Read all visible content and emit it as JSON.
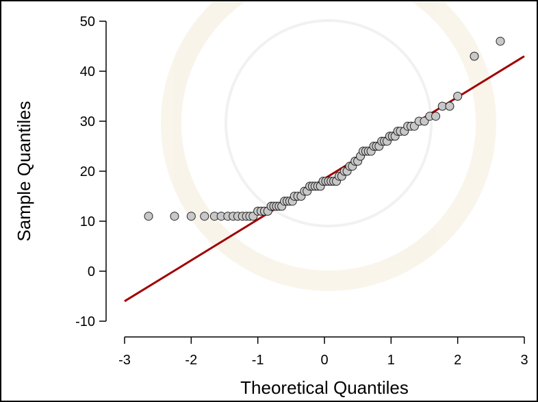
{
  "chart_data": {
    "type": "scatter",
    "xlabel": "Theoretical Quantiles",
    "ylabel": "Sample Quantiles",
    "xlim": [
      -3,
      3
    ],
    "ylim": [
      -10,
      50
    ],
    "xticks": [
      -3,
      -2,
      -1,
      0,
      1,
      2,
      3
    ],
    "yticks": [
      -10,
      0,
      10,
      20,
      30,
      40,
      50
    ],
    "series": [
      {
        "color": "#c8c8c8",
        "x": [
          -2.64,
          -2.25,
          -2.0,
          -1.8,
          -1.65,
          -1.55,
          -1.45,
          -1.37,
          -1.3,
          -1.23,
          -1.17,
          -1.12,
          -1.07,
          -1.0,
          -0.95,
          -0.9,
          -0.85,
          -0.8,
          -0.76,
          -0.72,
          -0.68,
          -0.64,
          -0.6,
          -0.56,
          -0.52,
          -0.48,
          -0.45,
          -0.4,
          -0.35,
          -0.3,
          -0.26,
          -0.22,
          -0.18,
          -0.14,
          -0.1,
          -0.06,
          -0.02,
          0.02,
          0.06,
          0.1,
          0.14,
          0.18,
          0.22,
          0.26,
          0.3,
          0.34,
          0.38,
          0.42,
          0.46,
          0.5,
          0.54,
          0.58,
          0.62,
          0.66,
          0.7,
          0.74,
          0.78,
          0.82,
          0.86,
          0.9,
          0.94,
          0.98,
          1.02,
          1.06,
          1.1,
          1.14,
          1.2,
          1.25,
          1.3,
          1.35,
          1.42,
          1.5,
          1.58,
          1.67,
          1.77,
          1.88,
          2.0,
          2.25,
          2.64
        ],
        "values": [
          11,
          11,
          11,
          11,
          11,
          11,
          11,
          11,
          11,
          11,
          11,
          11,
          11,
          12,
          12,
          12,
          12,
          13,
          13,
          13,
          13,
          13,
          14,
          14,
          14,
          14,
          15,
          15,
          15,
          16,
          16,
          17,
          17,
          17,
          17,
          17,
          18,
          18,
          18,
          18,
          18,
          18,
          19,
          19,
          20,
          20,
          21,
          21,
          22,
          22,
          23,
          24,
          24,
          24,
          24,
          25,
          25,
          25,
          26,
          26,
          26,
          27,
          27,
          27,
          28,
          28,
          28,
          29,
          29,
          29,
          30,
          30,
          31,
          31,
          33,
          33,
          35,
          43,
          46
        ]
      }
    ],
    "reference_line": {
      "x": [
        -3,
        3
      ],
      "y": [
        -6,
        43
      ],
      "color": "#a00000"
    }
  }
}
